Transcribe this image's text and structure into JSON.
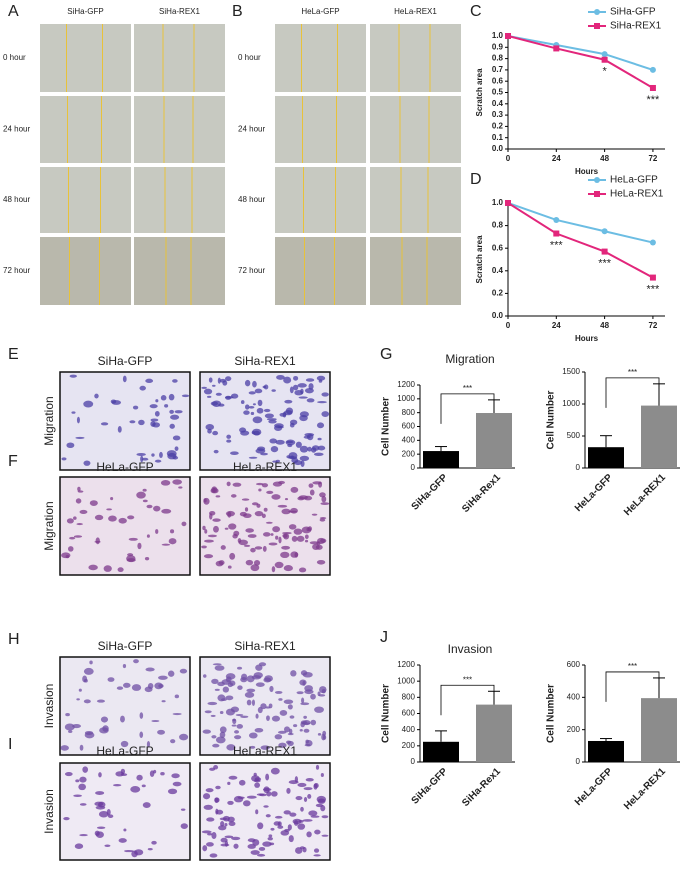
{
  "panels": {
    "A": {
      "letter": "A",
      "columns": [
        "SiHa-GFP",
        "SiHa-REX1"
      ],
      "rows": [
        "0 hour",
        "24 hour",
        "48 hour",
        "72 hour"
      ]
    },
    "B": {
      "letter": "B",
      "columns": [
        "HeLa-GFP",
        "HeLa-REX1"
      ],
      "rows": [
        "0 hour",
        "24 hour",
        "48 hour",
        "72 hour"
      ]
    },
    "E": {
      "letter": "E",
      "columns": [
        "SiHa-GFP",
        "SiHa-REX1"
      ],
      "row_label": "Migration"
    },
    "F": {
      "letter": "F",
      "columns": [
        "HeLa-GFP",
        "HeLa-REX1"
      ],
      "row_label": "Migration"
    },
    "H": {
      "letter": "H",
      "columns": [
        "SiHa-GFP",
        "SiHa-REX1"
      ],
      "row_label": "Invasion"
    },
    "I": {
      "letter": "I",
      "columns": [
        "HeLa-GFP",
        "HeLa-REX1"
      ],
      "row_label": "Invasion"
    },
    "G": {
      "letter": "G",
      "title": "Migration"
    },
    "J": {
      "letter": "J",
      "title": "Invasion"
    }
  },
  "chart_data": [
    {
      "type": "line",
      "panel_label": "C",
      "x_label": "Hours",
      "y_label": "Scratch area",
      "x": [
        0,
        24,
        48,
        72
      ],
      "xlim": [
        0,
        78
      ],
      "xticks": [
        0,
        24,
        48,
        72
      ],
      "ylim": [
        0,
        1
      ],
      "yticks": [
        {
          "value": 0,
          "label": "0.0"
        },
        {
          "value": 0.1,
          "label": "0.1"
        },
        {
          "value": 0.2,
          "label": "0.2"
        },
        {
          "value": 0.3,
          "label": "0.3"
        },
        {
          "value": 0.4,
          "label": "0.4"
        },
        {
          "value": 0.5,
          "label": "0.5"
        },
        {
          "value": 0.6,
          "label": "0.6"
        },
        {
          "value": 0.7,
          "label": "0.7"
        },
        {
          "value": 0.8,
          "label": "0.8"
        },
        {
          "value": 0.9,
          "label": "0.9"
        },
        {
          "value": 1,
          "label": "1.0"
        }
      ],
      "series": [
        {
          "name": "SiHa-GFP",
          "color": "#6cbde3",
          "marker": "circle",
          "values": [
            1.0,
            0.92,
            0.84,
            0.7
          ]
        },
        {
          "name": "SiHa-REX1",
          "color": "#e2267b",
          "marker": "square",
          "values": [
            1.0,
            0.89,
            0.79,
            0.54
          ],
          "significance": [
            null,
            null,
            "*",
            "***"
          ]
        }
      ]
    },
    {
      "type": "line",
      "panel_label": "D",
      "x_label": "Hours",
      "y_label": "Scratch area",
      "x": [
        0,
        24,
        48,
        72
      ],
      "xlim": [
        0,
        78
      ],
      "xticks": [
        0,
        24,
        48,
        72
      ],
      "ylim": [
        0,
        1
      ],
      "yticks": [
        {
          "value": 0,
          "label": "0.0"
        },
        {
          "value": 0.2,
          "label": "0.2"
        },
        {
          "value": 0.4,
          "label": "0.4"
        },
        {
          "value": 0.6,
          "label": "0.6"
        },
        {
          "value": 0.8,
          "label": "0.8"
        },
        {
          "value": 1,
          "label": "1.0"
        }
      ],
      "series": [
        {
          "name": "HeLa-GFP",
          "color": "#6cbde3",
          "marker": "circle",
          "values": [
            1.0,
            0.85,
            0.75,
            0.65
          ]
        },
        {
          "name": "HeLa-REX1",
          "color": "#e2267b",
          "marker": "square",
          "values": [
            1.0,
            0.73,
            0.57,
            0.34
          ],
          "significance": [
            null,
            "***",
            "***",
            "***"
          ]
        }
      ]
    },
    {
      "type": "bar",
      "y_label": "Cell Number",
      "categories": [
        "SiHa-GFP",
        "SiHa-Rex1"
      ],
      "values": [
        245,
        795
      ],
      "errors": [
        65,
        190
      ],
      "colors": [
        "#000000",
        "#8c8c8c"
      ],
      "ylim": [
        0,
        1200
      ],
      "yticks": [
        0,
        200,
        400,
        600,
        800,
        1000,
        1200
      ],
      "significance": "***"
    },
    {
      "type": "bar",
      "y_label": "Cell Number",
      "categories": [
        "HeLa-GFP",
        "HeLa-REX1"
      ],
      "values": [
        325,
        975
      ],
      "errors": [
        180,
        340
      ],
      "colors": [
        "#000000",
        "#8c8c8c"
      ],
      "ylim": [
        0,
        1500
      ],
      "yticks": [
        0,
        500,
        1000,
        1500
      ],
      "significance": "***"
    },
    {
      "type": "bar",
      "y_label": "Cell Number",
      "categories": [
        "SiHa-GFP",
        "SiHa-Rex1"
      ],
      "values": [
        250,
        710
      ],
      "errors": [
        135,
        165
      ],
      "colors": [
        "#000000",
        "#8c8c8c"
      ],
      "ylim": [
        0,
        1200
      ],
      "yticks": [
        0,
        200,
        400,
        600,
        800,
        1000,
        1200
      ],
      "significance": "***"
    },
    {
      "type": "bar",
      "y_label": "Cell Number",
      "categories": [
        "HeLa-GFP",
        "HeLa-REX1"
      ],
      "values": [
        130,
        395
      ],
      "errors": [
        15,
        125
      ],
      "colors": [
        "#000000",
        "#8c8c8c"
      ],
      "ylim": [
        0,
        600
      ],
      "yticks": [
        0,
        200,
        400,
        600
      ],
      "significance": "***"
    }
  ]
}
